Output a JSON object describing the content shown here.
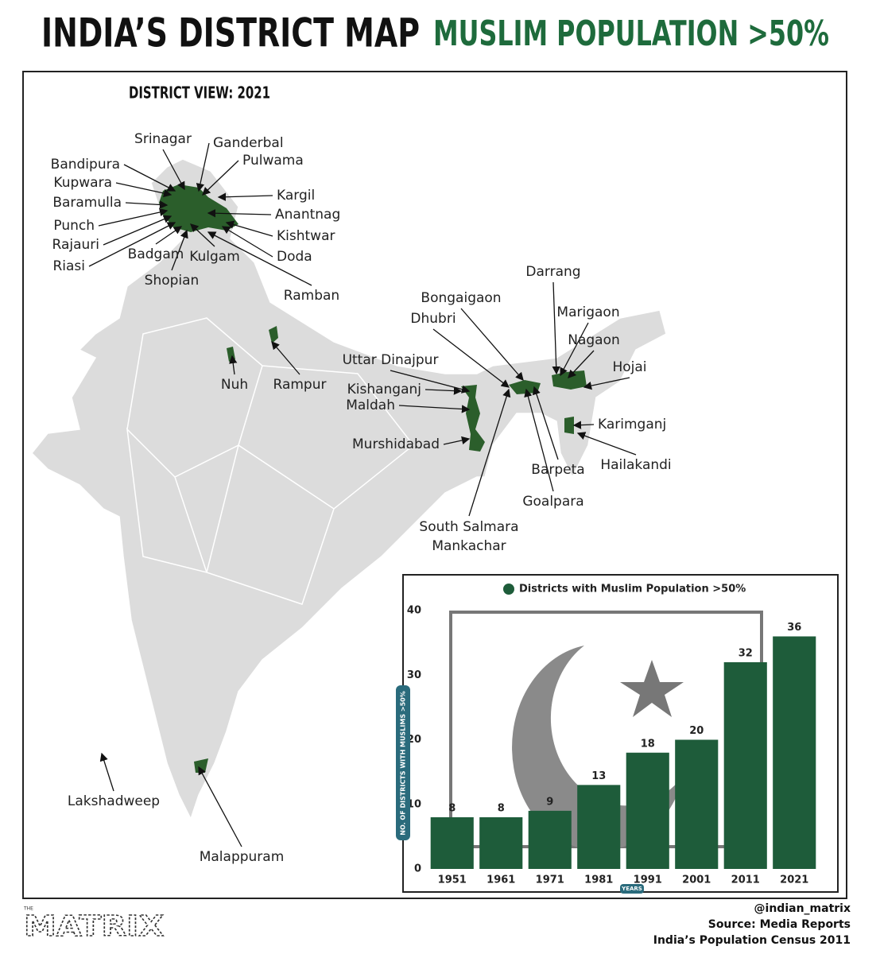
{
  "header": {
    "title": "INDIA’S DISTRICT MAP",
    "subtitle": "MUSLIM POPULATION >50%"
  },
  "map": {
    "view": "DISTRICT VIEW: 2021",
    "labels": [
      "Srinagar",
      "Ganderbal",
      "Pulwama",
      "Bandipura",
      "Kupwara",
      "Baramulla",
      "Kargil",
      "Anantnag",
      "Punch",
      "Kishtwar",
      "Rajauri",
      "Doda",
      "Riasi",
      "Badgam",
      "Kulgam",
      "Shopian",
      "Ramban",
      "Nuh",
      "Rampur",
      "Darrang",
      "Bongaigaon",
      "Marigaon",
      "Dhubri",
      "Nagaon",
      "Uttar Dinajpur",
      "Hojai",
      "Kishanganj",
      "Maldah",
      "Karimganj",
      "Murshidabad",
      "Hailakandi",
      "Barpeta",
      "Goalpara",
      "South Salmara Mankachar",
      "Lakshadweep",
      "Malappuram"
    ]
  },
  "chart_data": {
    "type": "bar",
    "categories": [
      "1951",
      "1961",
      "1971",
      "1981",
      "1991",
      "2001",
      "2011",
      "2021"
    ],
    "series": [
      {
        "name": "Districts with Muslim Population >50%",
        "color": "#1e5c3a",
        "values": [
          8,
          8,
          9,
          13,
          18,
          20,
          32,
          36
        ]
      }
    ],
    "ylabel": "NO. OF DISTRICTS WITH MUSLIMS >50%",
    "xlabel": "YEARS",
    "ylim": [
      0,
      40
    ],
    "yticks": [
      0,
      10,
      20,
      30,
      40
    ],
    "grid": false,
    "legend": "top"
  },
  "footer": {
    "logo_small": "THE",
    "logo": "MATRIX",
    "handle": "@indian_matrix",
    "source": "Source: Media Reports",
    "census": "India’s Population Census 2011"
  }
}
